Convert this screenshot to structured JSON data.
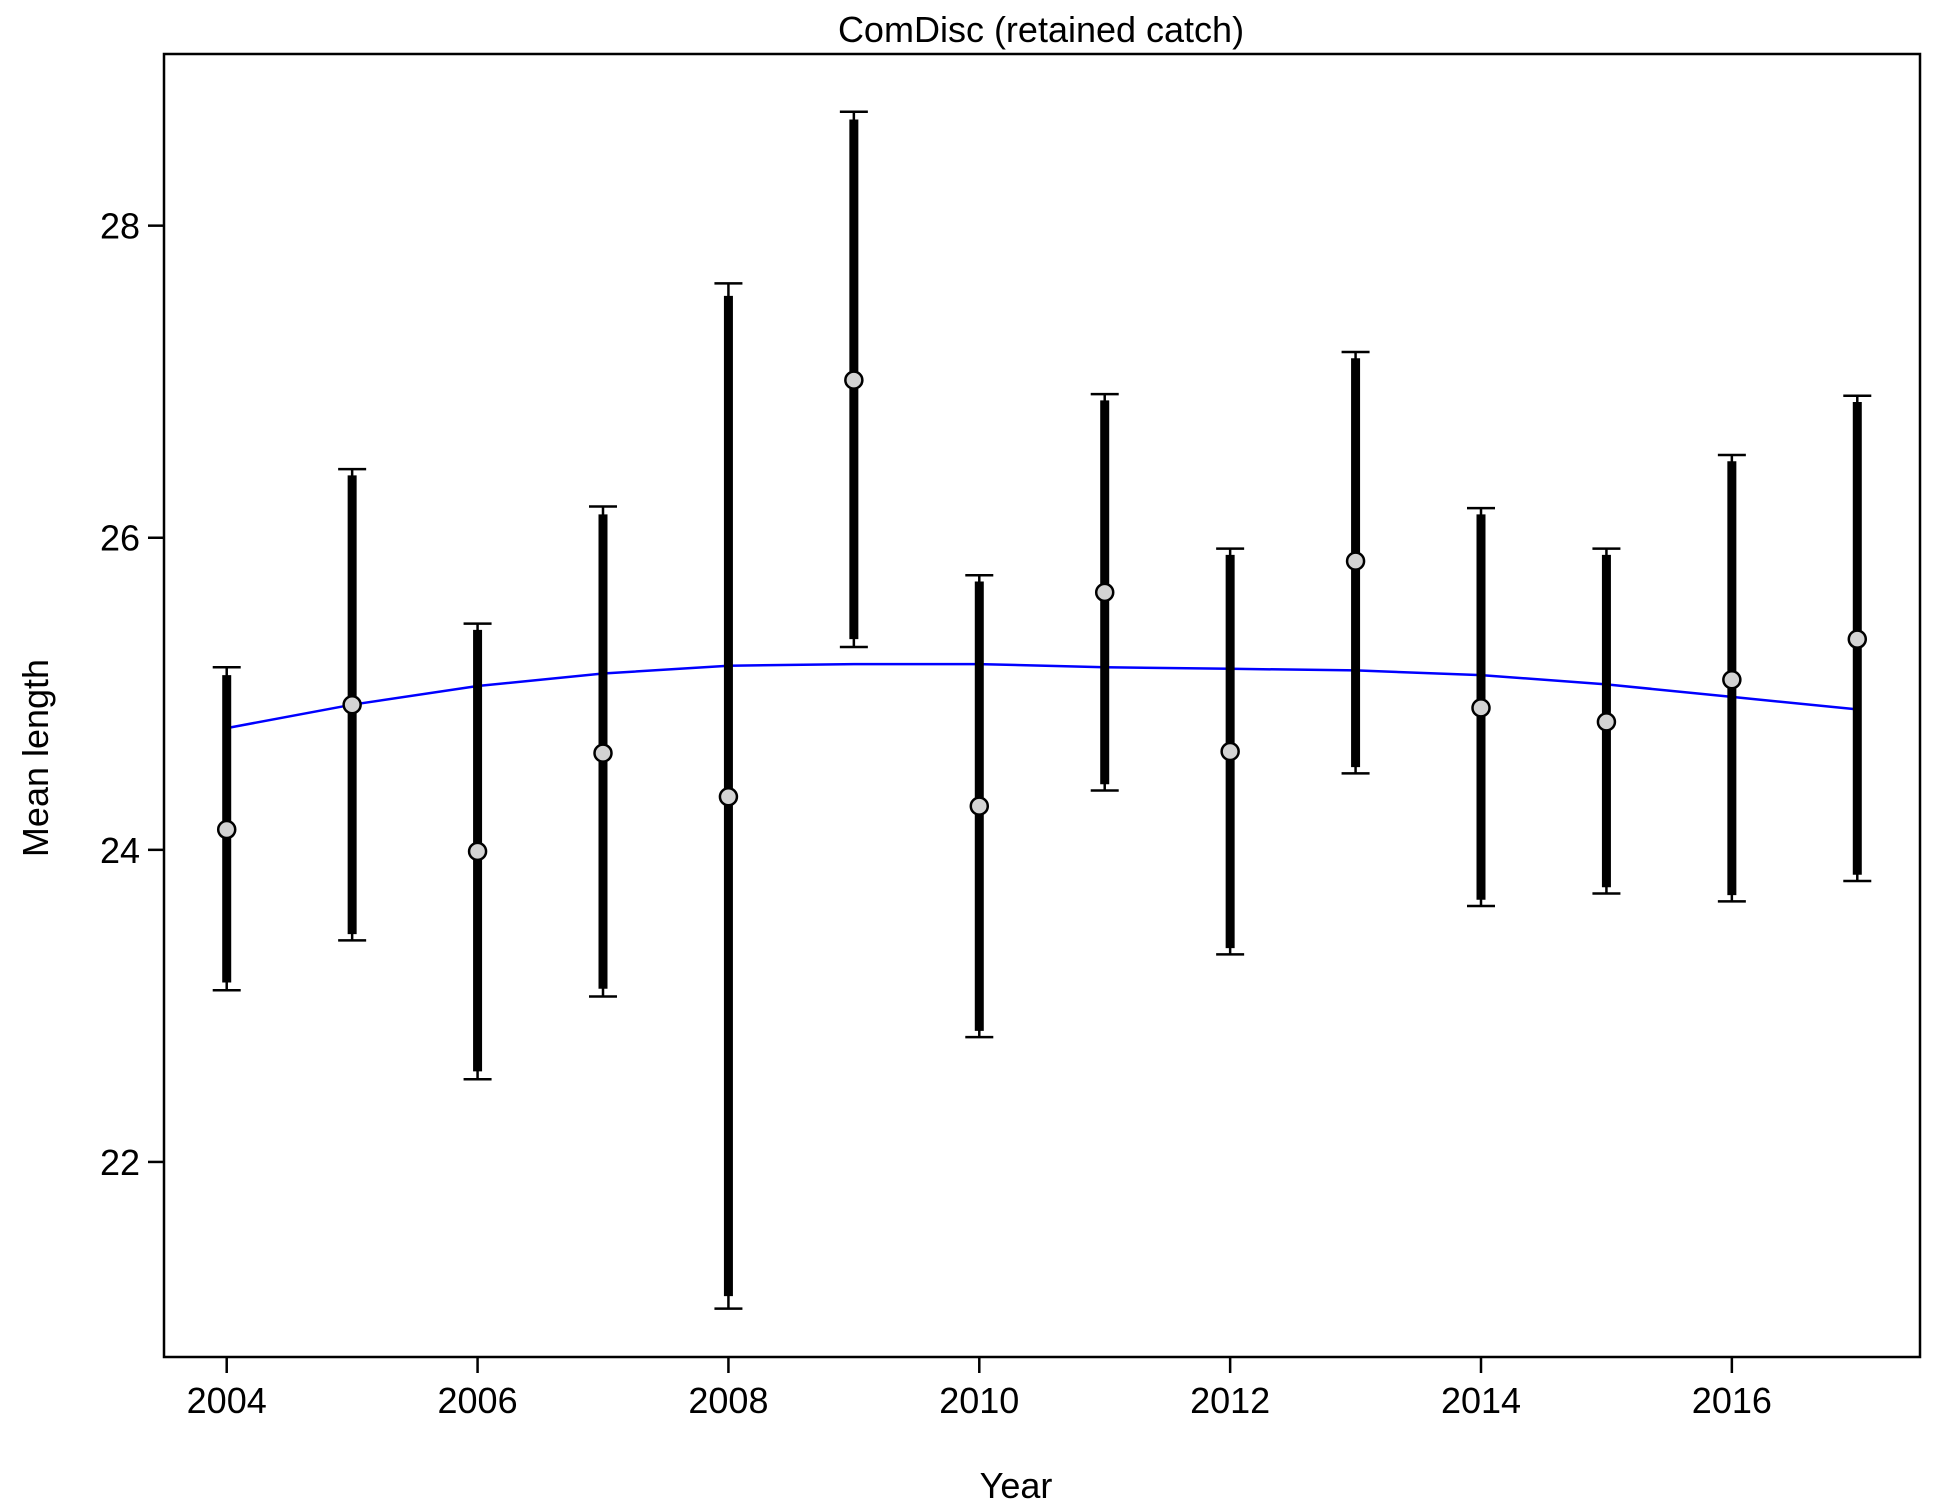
{
  "chart_data": {
    "type": "scatter",
    "title": "ComDisc (retained catch)",
    "xlabel": "Year",
    "ylabel": "Mean length",
    "xlim": [
      2003.5,
      2017.5
    ],
    "ylim": [
      20.75,
      29.1
    ],
    "x_ticks": [
      2004,
      2006,
      2008,
      2010,
      2012,
      2014,
      2016
    ],
    "y_ticks": [
      22,
      24,
      26,
      28
    ],
    "grid": false,
    "series": [
      {
        "type": "errorbar",
        "points": [
          {
            "x": 2004,
            "y": 24.13,
            "inner_lo": 23.15,
            "inner_hi": 25.12,
            "outer_lo": 23.1,
            "outer_hi": 25.17
          },
          {
            "x": 2005,
            "y": 24.93,
            "inner_lo": 23.46,
            "inner_hi": 26.4,
            "outer_lo": 23.42,
            "outer_hi": 26.44
          },
          {
            "x": 2006,
            "y": 23.99,
            "inner_lo": 22.58,
            "inner_hi": 25.41,
            "outer_lo": 22.53,
            "outer_hi": 25.45
          },
          {
            "x": 2007,
            "y": 24.62,
            "inner_lo": 23.11,
            "inner_hi": 26.15,
            "outer_lo": 23.06,
            "outer_hi": 26.2
          },
          {
            "x": 2008,
            "y": 24.34,
            "inner_lo": 21.14,
            "inner_hi": 27.55,
            "outer_lo": 21.06,
            "outer_hi": 27.63
          },
          {
            "x": 2009,
            "y": 27.01,
            "inner_lo": 25.35,
            "inner_hi": 28.68,
            "outer_lo": 25.3,
            "outer_hi": 28.73
          },
          {
            "x": 2010,
            "y": 24.28,
            "inner_lo": 22.84,
            "inner_hi": 25.72,
            "outer_lo": 22.8,
            "outer_hi": 25.76
          },
          {
            "x": 2011,
            "y": 25.65,
            "inner_lo": 24.42,
            "inner_hi": 26.88,
            "outer_lo": 24.38,
            "outer_hi": 26.92
          },
          {
            "x": 2012,
            "y": 24.63,
            "inner_lo": 23.37,
            "inner_hi": 25.89,
            "outer_lo": 23.33,
            "outer_hi": 25.93
          },
          {
            "x": 2013,
            "y": 25.85,
            "inner_lo": 24.53,
            "inner_hi": 27.15,
            "outer_lo": 24.49,
            "outer_hi": 27.19
          },
          {
            "x": 2014,
            "y": 24.91,
            "inner_lo": 23.68,
            "inner_hi": 26.15,
            "outer_lo": 23.64,
            "outer_hi": 26.19
          },
          {
            "x": 2015,
            "y": 24.82,
            "inner_lo": 23.76,
            "inner_hi": 25.89,
            "outer_lo": 23.72,
            "outer_hi": 25.93
          },
          {
            "x": 2016,
            "y": 25.09,
            "inner_lo": 23.71,
            "inner_hi": 26.49,
            "outer_lo": 23.67,
            "outer_hi": 26.53
          },
          {
            "x": 2017,
            "y": 25.35,
            "inner_lo": 23.84,
            "inner_hi": 26.87,
            "outer_lo": 23.8,
            "outer_hi": 26.91
          }
        ]
      },
      {
        "type": "line",
        "color": "#0000ff",
        "x": [
          2004,
          2005,
          2006,
          2007,
          2008,
          2009,
          2010,
          2011,
          2012,
          2013,
          2014,
          2015,
          2016,
          2017
        ],
        "y": [
          24.78,
          24.93,
          25.05,
          25.13,
          25.18,
          25.19,
          25.19,
          25.17,
          25.16,
          25.15,
          25.12,
          25.06,
          24.98,
          24.9
        ]
      }
    ],
    "colors": {
      "points_fill": "#d3d3d3",
      "points_stroke": "#000000",
      "errorbar": "#000000",
      "trend": "#0000ff"
    }
  }
}
